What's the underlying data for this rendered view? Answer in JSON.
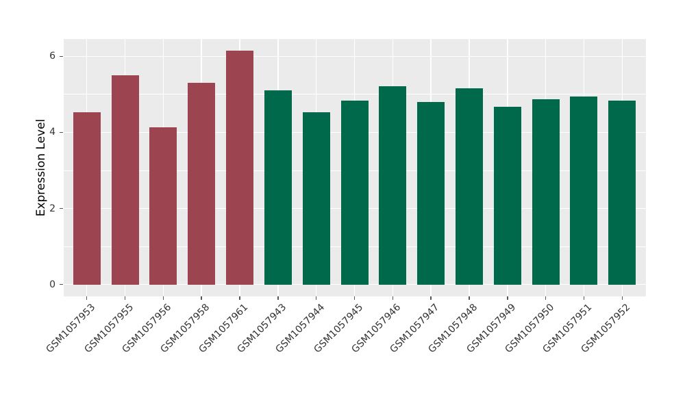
{
  "figure": {
    "background": "#ffffff",
    "panel_background": "#ebebeb",
    "grid_color": "#ffffff",
    "tick_color": "#555555",
    "tick_label_color": "#333333",
    "axis_label_color": "#000000"
  },
  "chart_data": {
    "type": "bar",
    "title": "",
    "xlabel": "",
    "ylabel": "Expression Level",
    "categories": [
      "GSM1057953",
      "GSM1057955",
      "GSM1057956",
      "GSM1057958",
      "GSM1057961",
      "GSM1057943",
      "GSM1057944",
      "GSM1057945",
      "GSM1057946",
      "GSM1057947",
      "GSM1057948",
      "GSM1057949",
      "GSM1057950",
      "GSM1057951",
      "GSM1057952"
    ],
    "values": [
      4.53,
      5.5,
      4.13,
      5.3,
      6.15,
      5.1,
      4.53,
      4.83,
      5.22,
      4.8,
      5.16,
      4.68,
      4.88,
      4.95,
      4.83
    ],
    "colors": [
      "#9c4551",
      "#9c4551",
      "#9c4551",
      "#9c4551",
      "#9c4551",
      "#00694b",
      "#00694b",
      "#00694b",
      "#00694b",
      "#00694b",
      "#00694b",
      "#00694b",
      "#00694b",
      "#00694b",
      "#00694b"
    ],
    "group_palette": {
      "maroon": "#9c4551",
      "green": "#00694b"
    },
    "yticks": [
      0,
      2,
      4,
      6
    ],
    "minor_yticks": [
      1,
      3,
      5
    ],
    "ylim": [
      -0.31,
      6.45
    ],
    "grid": "white major + minor horizontal, white major vertical at category centers",
    "legend": "none",
    "x_tick_rotation_deg": 45
  }
}
